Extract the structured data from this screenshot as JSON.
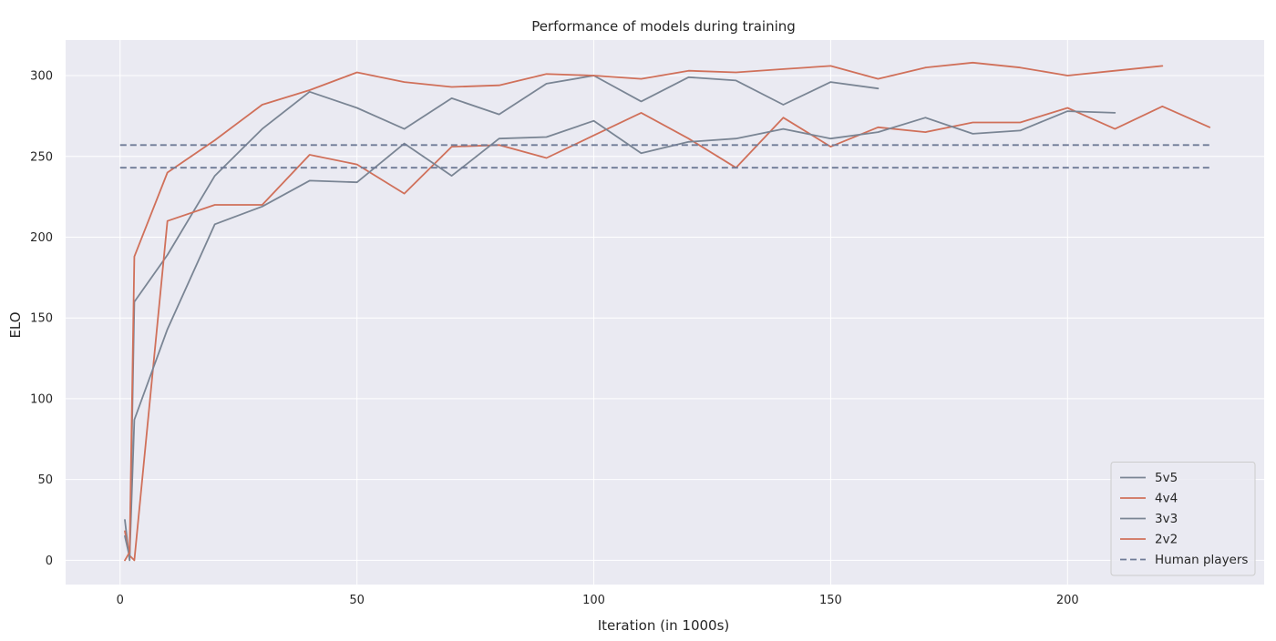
{
  "chart_data": {
    "type": "line",
    "title": "Performance of models during training",
    "xlabel": "Iteration (in 1000s)",
    "ylabel": "ELO",
    "xlim": [
      -11.5,
      241.5
    ],
    "ylim": [
      -15,
      322
    ],
    "xticks": [
      0,
      50,
      100,
      150,
      200
    ],
    "yticks": [
      0,
      50,
      100,
      150,
      200,
      250,
      300
    ],
    "grid": true,
    "legend_position": "bottom-right",
    "colors": {
      "background": "#eaeaf2",
      "grid": "#ffffff",
      "gray_series": "#7a8594",
      "red_series": "#d0705a",
      "human_line": "#6e7a96"
    },
    "series": [
      {
        "name": "5v5",
        "color": "#7a8594",
        "style": "solid",
        "x": [
          1,
          2,
          3,
          10,
          20,
          30,
          40,
          50,
          60,
          70,
          80,
          90,
          100,
          110,
          120,
          130,
          140,
          150,
          160
        ],
        "y": [
          25,
          0,
          160,
          189,
          238,
          267,
          290,
          280,
          267,
          286,
          276,
          295,
          300,
          284,
          299,
          297,
          282,
          296,
          292
        ]
      },
      {
        "name": "4v4",
        "color": "#d0705a",
        "style": "solid",
        "x": [
          1,
          2,
          3,
          10,
          20,
          30,
          40,
          50,
          60,
          70,
          80,
          90,
          100,
          110,
          120,
          130,
          140,
          150,
          160,
          170,
          180,
          190,
          200,
          210,
          220,
          230
        ],
        "y": [
          18,
          3,
          0,
          210,
          220,
          220,
          251,
          245,
          227,
          256,
          257,
          249,
          263,
          277,
          261,
          243,
          274,
          256,
          268,
          265,
          271,
          271,
          280,
          267,
          281,
          268
        ]
      },
      {
        "name": "3v3",
        "color": "#7a8594",
        "style": "solid",
        "x": [
          1,
          2,
          3,
          10,
          20,
          30,
          40,
          50,
          60,
          70,
          80,
          90,
          100,
          110,
          120,
          130,
          140,
          150,
          160,
          170,
          180,
          190,
          200,
          210
        ],
        "y": [
          15,
          2,
          87,
          143,
          208,
          219,
          235,
          234,
          258,
          238,
          261,
          262,
          272,
          252,
          259,
          261,
          267,
          261,
          265,
          274,
          264,
          266,
          278,
          277
        ]
      },
      {
        "name": "2v2",
        "color": "#d0705a",
        "style": "solid",
        "x": [
          1,
          2,
          3,
          10,
          20,
          30,
          40,
          50,
          60,
          70,
          80,
          90,
          100,
          110,
          120,
          130,
          140,
          150,
          160,
          170,
          180,
          190,
          200,
          210,
          220
        ],
        "y": [
          0,
          5,
          188,
          240,
          260,
          282,
          291,
          302,
          296,
          293,
          294,
          301,
          300,
          298,
          303,
          302,
          304,
          306,
          298,
          305,
          308,
          305,
          300,
          303,
          306
        ]
      },
      {
        "name": "Human players",
        "color": "#6e7a96",
        "style": "dashed",
        "x": [
          0,
          230
        ],
        "y": [
          257,
          257
        ]
      },
      {
        "name": "",
        "color": "#6e7a96",
        "style": "dashed",
        "x": [
          0,
          230
        ],
        "y": [
          243,
          243
        ]
      }
    ]
  }
}
